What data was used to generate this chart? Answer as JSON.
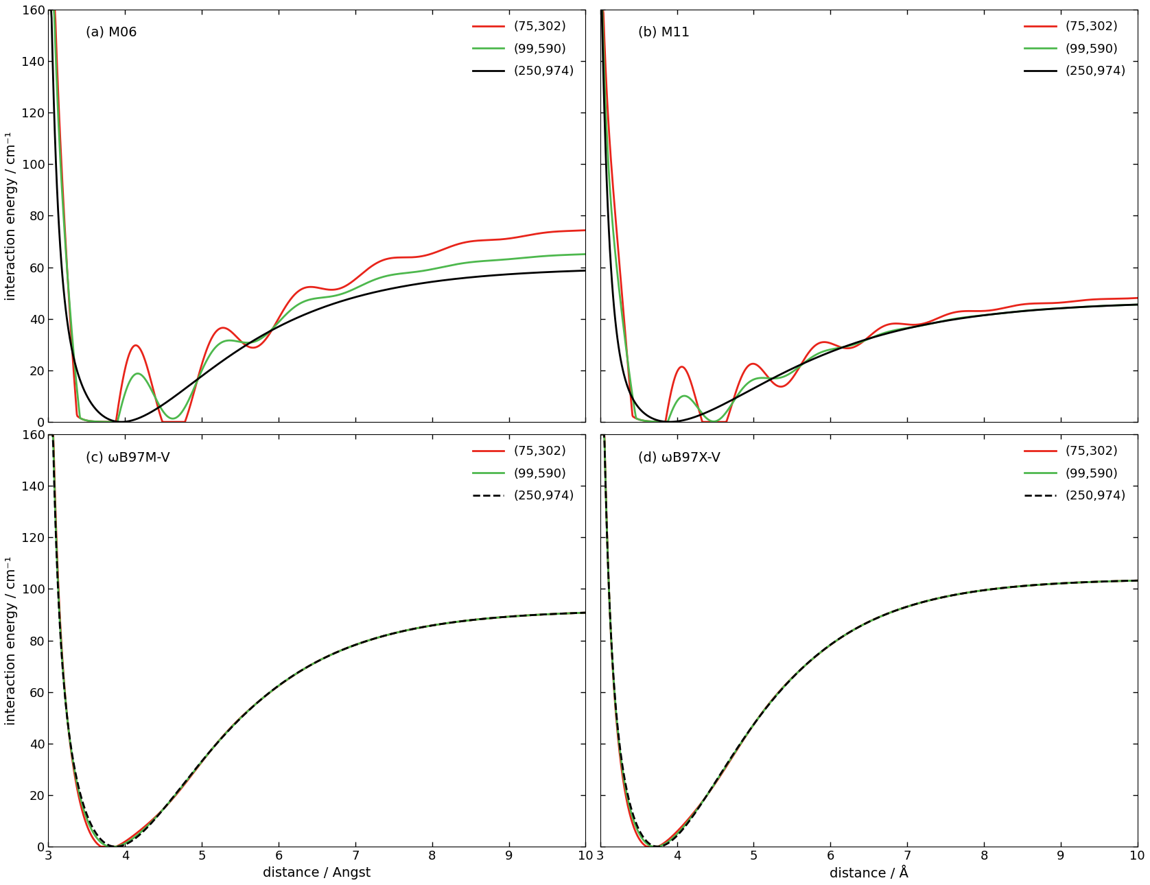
{
  "panels": [
    {
      "label": "(a) M06",
      "xlabel": "distance / Angst",
      "ylabel": "interaction energy / cm⁻¹",
      "xlim": [
        3,
        10
      ],
      "ylim": [
        0,
        160
      ],
      "black_linestyle": "solid"
    },
    {
      "label": "(b) M11",
      "xlabel": "distance / Å",
      "ylabel": "interaction energy / cm⁻¹",
      "xlim": [
        3,
        10
      ],
      "ylim": [
        0,
        160
      ],
      "black_linestyle": "solid"
    },
    {
      "label": "(c) ωB97M-V",
      "xlabel": "distance / Angst",
      "ylabel": "interaction energy / cm⁻¹",
      "xlim": [
        3,
        10
      ],
      "ylim": [
        0,
        160
      ],
      "black_linestyle": "dashed"
    },
    {
      "label": "(d) ωB97X-V",
      "xlabel": "distance / Å",
      "ylabel": "interaction energy / cm⁻¹",
      "xlim": [
        3,
        10
      ],
      "ylim": [
        0,
        160
      ],
      "black_linestyle": "dashed"
    }
  ],
  "legend_labels": [
    "(75,302)",
    "(99,590)",
    "(250,974)"
  ],
  "color_red": "#e8241a",
  "color_green": "#4db84d",
  "color_black": "#000000",
  "xticks": [
    3,
    4,
    5,
    6,
    7,
    8,
    9,
    10
  ],
  "yticks": [
    0,
    20,
    40,
    60,
    80,
    100,
    120,
    140,
    160
  ],
  "fontsize_label": 14,
  "fontsize_tick": 13,
  "fontsize_legend": 13,
  "fontsize_panel": 14,
  "lw": 2.0
}
